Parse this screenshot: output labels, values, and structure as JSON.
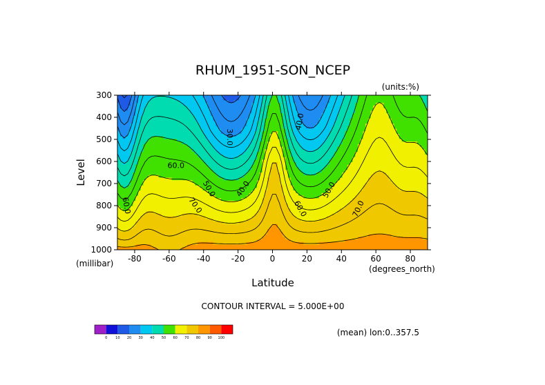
{
  "chart_data": {
    "type": "heatmap",
    "title": "RHUM_1951-SON_NCEP",
    "units_label": "(units:%)",
    "xlabel": "Latitude",
    "ylabel": "Level",
    "x_units": "(degrees_north)",
    "y_units": "(millibar)",
    "xlim": [
      -90,
      90
    ],
    "ylim": [
      1000,
      300
    ],
    "x_ticks": [
      -80,
      -60,
      -40,
      -20,
      0,
      20,
      40,
      60,
      80
    ],
    "x_tick_labels": [
      "-80",
      "-60",
      "-40",
      "-20",
      "0",
      "20",
      "40",
      "60",
      "80"
    ],
    "y_ticks": [
      300,
      400,
      500,
      600,
      700,
      800,
      900,
      1000
    ],
    "y_tick_labels": [
      "300",
      "400",
      "500",
      "600",
      "700",
      "800",
      "900",
      "1000"
    ],
    "contour_interval_text": "CONTOUR INTERVAL = 5.000E+00",
    "footer_text": "(mean) lon:0..357.5",
    "contour_labels": [
      {
        "text": "30.0",
        "lat": -25,
        "level": 490,
        "rotate": 90
      },
      {
        "text": "40.0",
        "lat": 16,
        "level": 420,
        "rotate": -80
      },
      {
        "text": "60.0",
        "lat": -56,
        "level": 620,
        "rotate": 0
      },
      {
        "text": "50.0",
        "lat": -37,
        "level": 725,
        "rotate": 60
      },
      {
        "text": "40.0",
        "lat": -17,
        "level": 725,
        "rotate": -55
      },
      {
        "text": "50.0",
        "lat": 33,
        "level": 730,
        "rotate": -60
      },
      {
        "text": "60.0",
        "lat": -85,
        "level": 800,
        "rotate": 80
      },
      {
        "text": "70.0",
        "lat": -45,
        "level": 800,
        "rotate": 55
      },
      {
        "text": "60.0",
        "lat": 16,
        "level": 815,
        "rotate": 60
      },
      {
        "text": "70.0",
        "lat": 50,
        "level": 815,
        "rotate": -65
      }
    ],
    "legend": {
      "bounds": [
        "0",
        "10",
        "20",
        "30",
        "40",
        "50",
        "60",
        "70",
        "80",
        "90",
        "100"
      ],
      "colors": [
        "#a020c8",
        "#1010d8",
        "#1e5ae6",
        "#1e8cf0",
        "#00c8f0",
        "#00dcb0",
        "#40e000",
        "#f0f000",
        "#f0c800",
        "#ff9600",
        "#ff5a00",
        "#ff0000"
      ]
    },
    "grid": "off",
    "legend_placement": "bottom-left"
  }
}
